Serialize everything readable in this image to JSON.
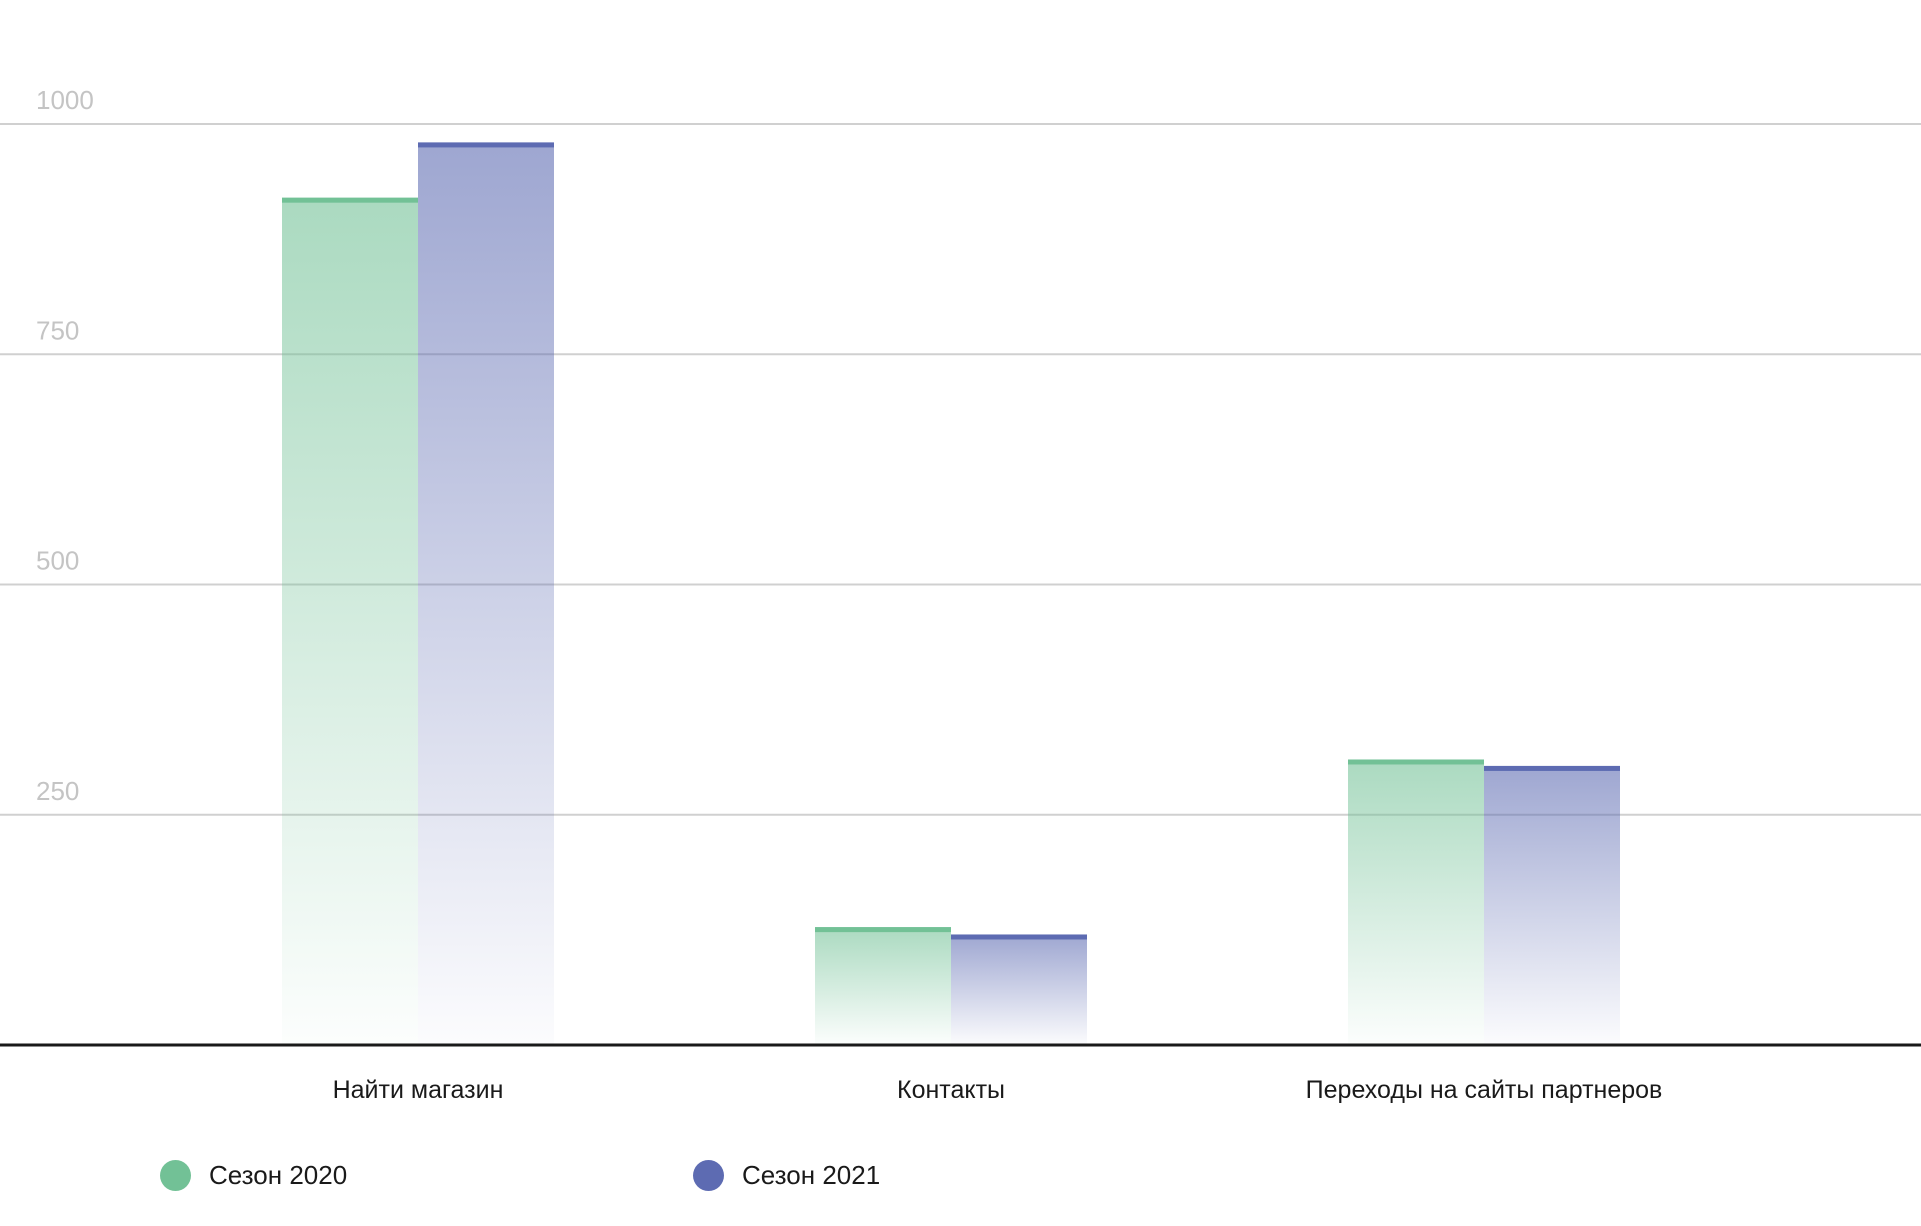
{
  "chart_data": {
    "type": "bar",
    "title": "",
    "xlabel": "",
    "ylabel": "",
    "ylim": [
      0,
      1000
    ],
    "yticks": [
      250,
      500,
      750,
      1000
    ],
    "categories": [
      "Найти магазин",
      "Контакты",
      "Переходы на сайты партнеров"
    ],
    "series": [
      {
        "name": "Сезон 2020",
        "values": [
          920,
          128,
          310
        ],
        "color": "#72c196"
      },
      {
        "name": "Сезон 2021",
        "values": [
          980,
          120,
          303
        ],
        "color": "#5d6bb2"
      }
    ],
    "grid": true,
    "legend_position": "bottom-left"
  }
}
